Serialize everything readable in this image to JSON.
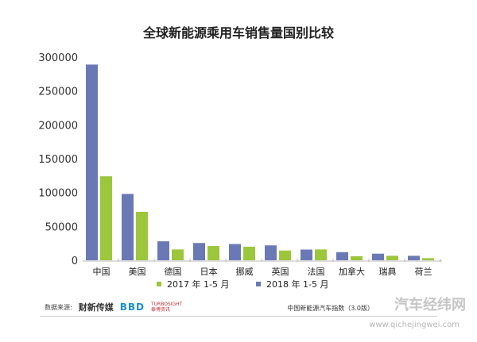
{
  "chart_data": {
    "type": "bar",
    "title": "全球新能源乘用车销售量国别比较",
    "categories": [
      "中国",
      "美国",
      "德国",
      "日本",
      "挪威",
      "英国",
      "法国",
      "加拿大",
      "瑞典",
      "荷兰"
    ],
    "series": [
      {
        "name": "2018 年 1-5 月",
        "color": "#6a79b5",
        "values": [
          289000,
          98000,
          28000,
          25500,
          24000,
          22000,
          15800,
          12000,
          9700,
          6600
        ]
      },
      {
        "name": "2017 年 1-5 月",
        "color": "#9cc63b",
        "values": [
          124000,
          71500,
          16000,
          21000,
          20000,
          14400,
          16000,
          6000,
          6600,
          3100
        ]
      }
    ],
    "yticks": [
      "0",
      "50000",
      "100000",
      "150000",
      "200000",
      "250000",
      "300000"
    ],
    "ylim": [
      0,
      300000
    ],
    "xlabel": "",
    "ylabel": "",
    "grid": false,
    "legend_position": "bottom",
    "legend": [
      "2017 年 1-5 月",
      "2018 年 1-5 月"
    ]
  },
  "footer": {
    "source_label": "数据来源:",
    "source_logos": [
      "财新传媒",
      "BBD",
      "TURBOSIGHT",
      "泰博资讯"
    ],
    "index_text": "中国新能源汽车指数（3.0版）"
  },
  "watermark": {
    "name": "汽车经纬网",
    "url": "www.qichejingwei.com"
  }
}
